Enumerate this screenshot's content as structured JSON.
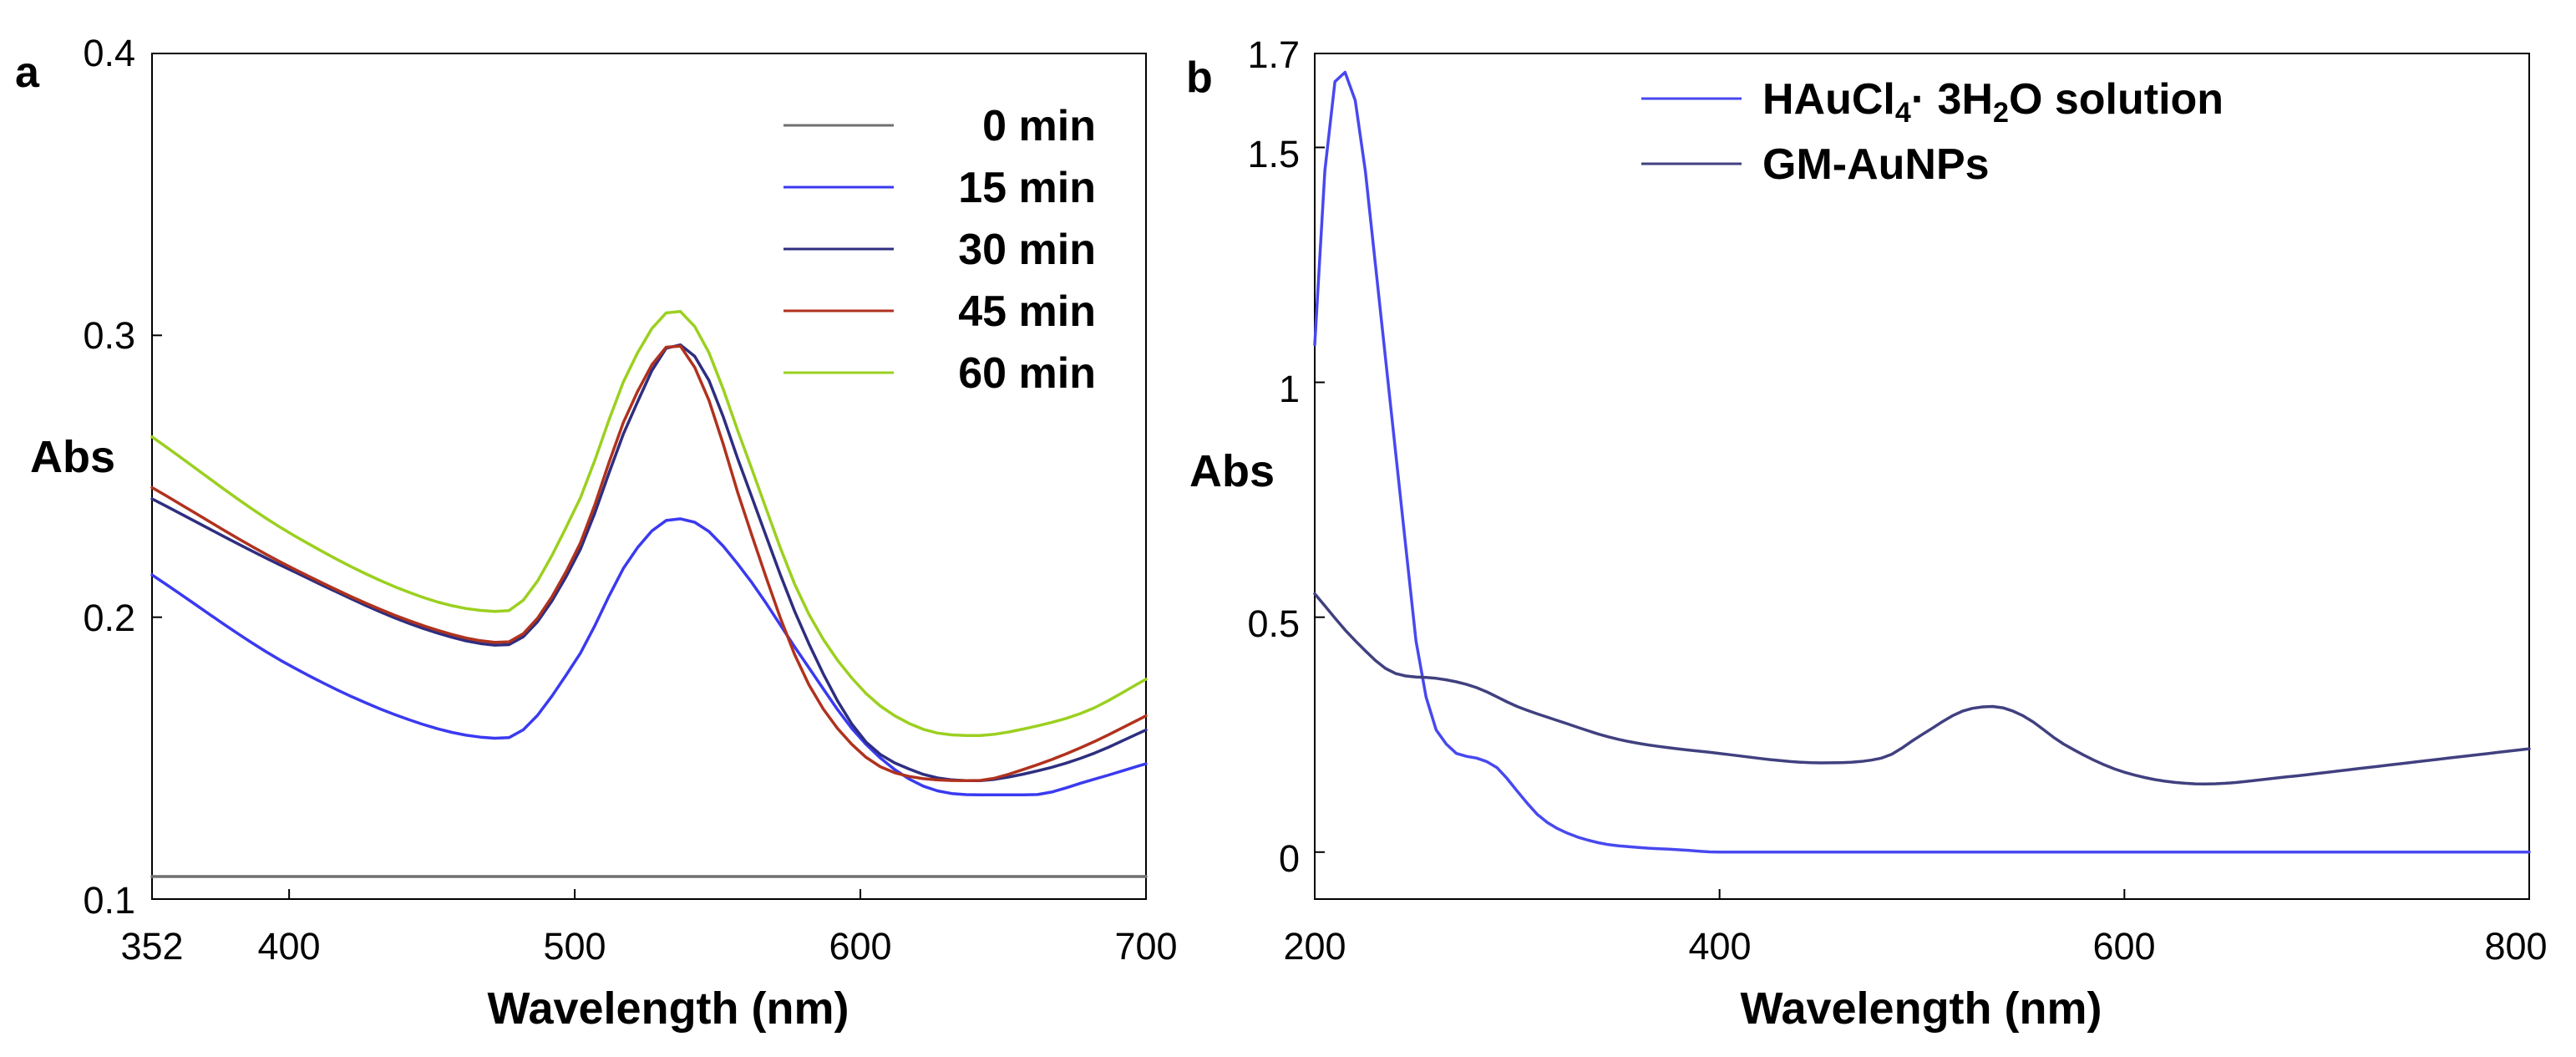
{
  "chart_data": [
    {
      "panel_label": "a",
      "type": "line",
      "title": "",
      "xlabel": "Wavelength (nm)",
      "ylabel": "Abs",
      "xlim": [
        352,
        700
      ],
      "ylim": [
        0.1,
        0.4
      ],
      "x_ticks": [
        "352",
        "400",
        "500",
        "600",
        "700"
      ],
      "y_ticks": [
        "0.1",
        "0.2",
        "0.3",
        "0.4"
      ],
      "x": [
        352,
        400,
        450,
        475,
        500,
        520,
        535,
        545,
        560,
        580,
        600,
        620,
        640,
        660,
        680,
        700
      ],
      "series": [
        {
          "name": "0 min",
          "color": "#707070",
          "values": [
            0.108,
            0.108,
            0.108,
            0.108,
            0.108,
            0.108,
            0.108,
            0.108,
            0.108,
            0.108,
            0.108,
            0.108,
            0.108,
            0.108,
            0.108,
            0.108
          ]
        },
        {
          "name": "15 min",
          "color": "#3a3af0",
          "values": [
            0.215,
            0.183,
            0.161,
            0.157,
            0.184,
            0.222,
            0.235,
            0.232,
            0.215,
            0.185,
            0.157,
            0.141,
            0.137,
            0.137,
            0.142,
            0.148
          ]
        },
        {
          "name": "30 min",
          "color": "#2e2e80",
          "values": [
            0.242,
            0.217,
            0.195,
            0.19,
            0.22,
            0.272,
            0.297,
            0.288,
            0.248,
            0.195,
            0.158,
            0.145,
            0.142,
            0.145,
            0.151,
            0.16
          ]
        },
        {
          "name": "45 min",
          "color": "#b0321e",
          "values": [
            0.246,
            0.218,
            0.196,
            0.191,
            0.222,
            0.276,
            0.297,
            0.282,
            0.235,
            0.18,
            0.152,
            0.143,
            0.142,
            0.147,
            0.155,
            0.165
          ]
        },
        {
          "name": "60 min",
          "color": "#9bd020",
          "values": [
            0.264,
            0.23,
            0.206,
            0.202,
            0.238,
            0.29,
            0.309,
            0.298,
            0.258,
            0.205,
            0.175,
            0.161,
            0.158,
            0.161,
            0.167,
            0.178
          ]
        }
      ]
    },
    {
      "panel_label": "b",
      "type": "line",
      "title": "",
      "xlabel": "Wavelength (nm)",
      "ylabel": "Abs",
      "xlim": [
        200,
        800
      ],
      "ylim": [
        -0.1,
        1.7
      ],
      "x_ticks": [
        "200",
        "400",
        "600",
        "800"
      ],
      "y_ticks": [
        "0",
        "0.5",
        "1",
        "1.5",
        "1.7"
      ],
      "y_tick_values": [
        0,
        0.5,
        1,
        1.5,
        1.7
      ],
      "series": [
        {
          "name": "HAuCl4·3H2O solution",
          "legend_parts": {
            "a": "HAuCl",
            "b": "4",
            "c": "· 3H",
            "d": "2",
            "e": "O solution"
          },
          "color": "#4848f0",
          "x": [
            200,
            205,
            210,
            215,
            220,
            225,
            230,
            235,
            240,
            245,
            250,
            255,
            260,
            265,
            270,
            280,
            290,
            300,
            310,
            320,
            340,
            360,
            380,
            400,
            450,
            500,
            600,
            700,
            800
          ],
          "values": [
            1.08,
            1.45,
            1.64,
            1.66,
            1.6,
            1.45,
            1.25,
            1.05,
            0.85,
            0.65,
            0.45,
            0.33,
            0.26,
            0.23,
            0.21,
            0.2,
            0.18,
            0.13,
            0.08,
            0.05,
            0.02,
            0.01,
            0.005,
            0.0,
            0.0,
            0.0,
            0.0,
            0.0,
            0.0
          ]
        },
        {
          "name": "GM-AuNPs",
          "color": "#404080",
          "x": [
            200,
            220,
            240,
            260,
            280,
            300,
            320,
            350,
            400,
            450,
            480,
            500,
            520,
            535,
            550,
            570,
            600,
            640,
            680,
            720,
            760,
            800
          ],
          "values": [
            0.55,
            0.45,
            0.38,
            0.37,
            0.35,
            0.31,
            0.28,
            0.24,
            0.21,
            0.19,
            0.2,
            0.25,
            0.3,
            0.31,
            0.29,
            0.23,
            0.17,
            0.145,
            0.16,
            0.18,
            0.2,
            0.22
          ]
        }
      ]
    }
  ]
}
